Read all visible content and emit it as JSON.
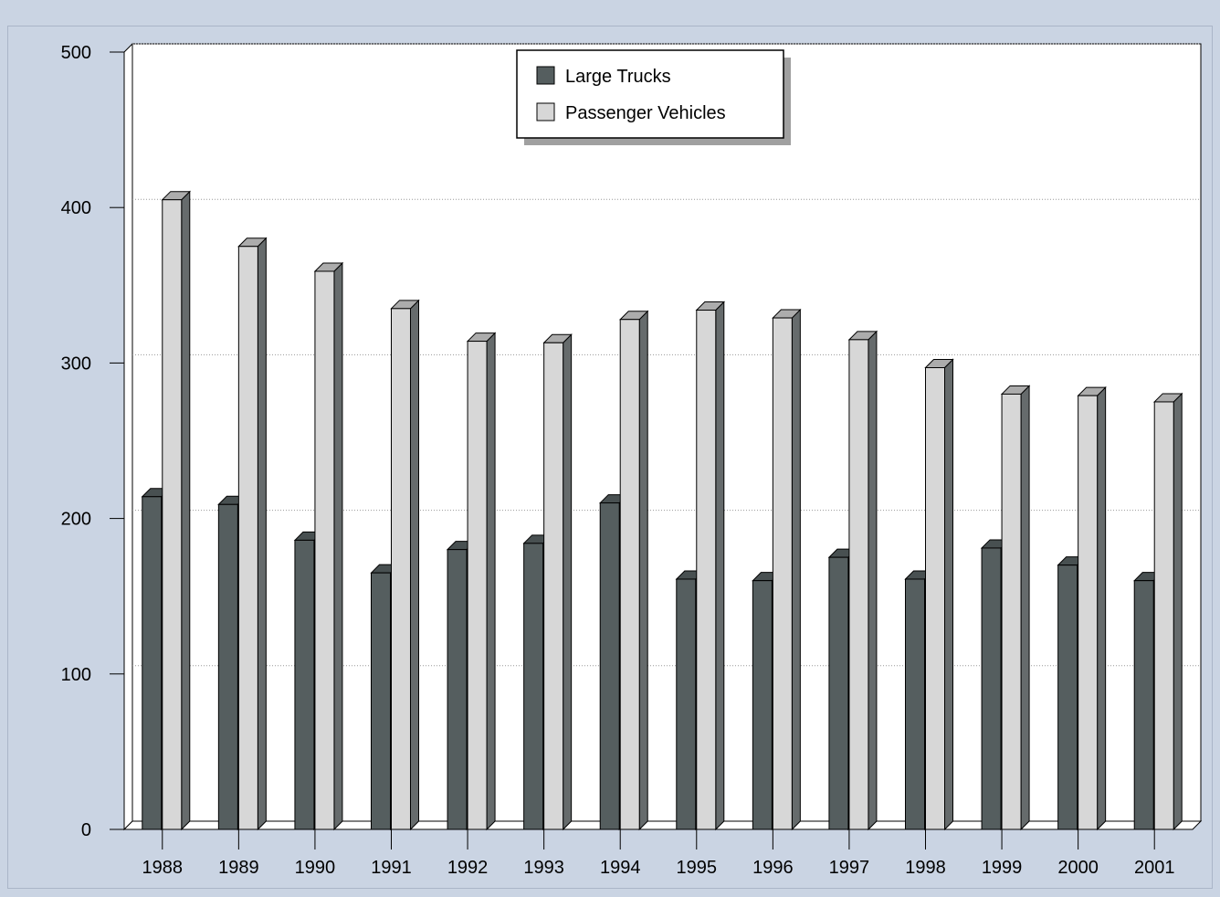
{
  "colors": {
    "page_background": "#cad4e3",
    "plot_background": "#ffffff",
    "large_trucks": "#555e5f",
    "passenger_vehicles": "#d7d7d7",
    "grid": "#999999"
  },
  "chart_data": {
    "type": "bar",
    "three_d": true,
    "categories": [
      "1988",
      "1989",
      "1990",
      "1991",
      "1992",
      "1993",
      "1994",
      "1995",
      "1996",
      "1997",
      "1998",
      "1999",
      "2000",
      "2001"
    ],
    "series": [
      {
        "name": "Large Trucks",
        "values": [
          214,
          209,
          186,
          165,
          180,
          184,
          210,
          161,
          160,
          175,
          161,
          181,
          170,
          160
        ]
      },
      {
        "name": "Passenger Vehicles",
        "values": [
          405,
          375,
          359,
          335,
          314,
          313,
          328,
          334,
          329,
          315,
          297,
          280,
          279,
          275
        ]
      }
    ],
    "ylim": [
      0,
      500
    ],
    "yticks": [
      "0",
      "100",
      "200",
      "300",
      "400",
      "500"
    ],
    "grid": true,
    "legend_position": "top-center"
  }
}
